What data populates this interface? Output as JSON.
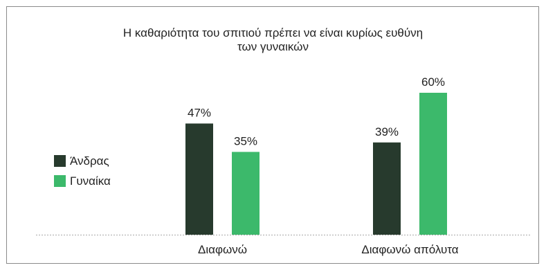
{
  "chart_data": {
    "type": "bar",
    "title_lines": [
      "Η καθαριότητα του σπιτιού πρέπει να είναι κυρίως ευθύνη",
      "των γυναικών"
    ],
    "categories": [
      "Διαφωνώ",
      "Διαφωνώ απόλυτα"
    ],
    "series": [
      {
        "name": "Άνδρας",
        "color": "#273a2d",
        "values": [
          47,
          39
        ],
        "labels": [
          "47%",
          "39%"
        ]
      },
      {
        "name": "Γυναίκα",
        "color": "#3cb96b",
        "values": [
          35,
          60
        ],
        "labels": [
          "35%",
          "60%"
        ]
      }
    ],
    "ylim": [
      0,
      100
    ],
    "value_unit": "%",
    "legend_position": "left",
    "grid": false,
    "baseline_style": "dotted"
  }
}
